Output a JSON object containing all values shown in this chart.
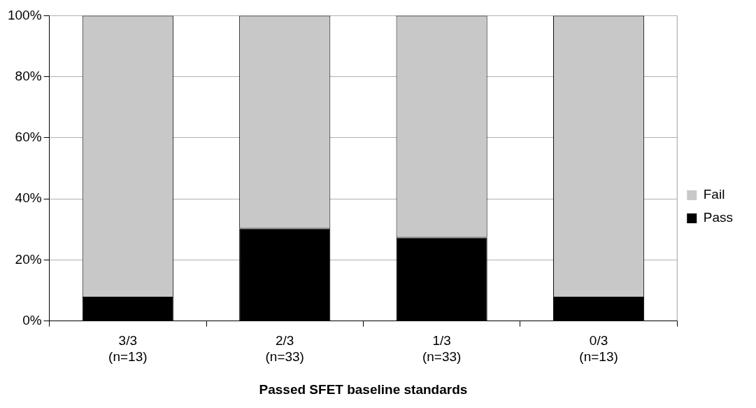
{
  "chart_data": {
    "type": "bar",
    "stacked": true,
    "xlabel": "Passed SFET baseline standards",
    "categories": [
      "3/3\n(n=13)",
      "2/3\n(n=33)",
      "1/3\n(n=33)",
      "0/3\n(n=13)"
    ],
    "series": [
      {
        "name": "Pass",
        "color": "#000000",
        "values": [
          7.7,
          30.3,
          27.3,
          7.7
        ]
      },
      {
        "name": "Fail",
        "color": "#c8c8c8",
        "values": [
          92.3,
          69.7,
          72.7,
          92.3
        ]
      }
    ],
    "ylim": [
      0,
      100
    ],
    "yticks": [
      {
        "value": 0,
        "label": "0%"
      },
      {
        "value": 20,
        "label": "20%"
      },
      {
        "value": 40,
        "label": "40%"
      },
      {
        "value": 60,
        "label": "60%"
      },
      {
        "value": 80,
        "label": "80%"
      },
      {
        "value": 100,
        "label": "100%"
      }
    ],
    "grid": "y",
    "legend": "right"
  }
}
